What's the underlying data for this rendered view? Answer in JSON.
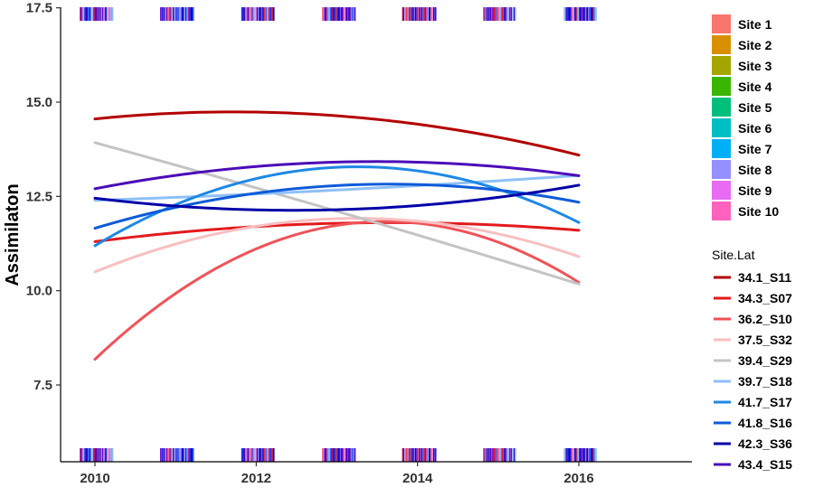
{
  "chart_data": {
    "type": "line",
    "title": "",
    "xlabel": "",
    "ylabel": "Assimilaton",
    "xlim": [
      2009.6,
      2017.4
    ],
    "ylim": [
      5.8,
      17.5
    ],
    "x_ticks": [
      2010,
      2012,
      2014,
      2016
    ],
    "y_ticks": [
      7.5,
      10.0,
      12.5,
      15.0,
      17.5
    ],
    "x_tick_labels": [
      "2010",
      "2012",
      "2014",
      "2016"
    ],
    "y_tick_labels": [
      "7.5",
      "10.0",
      "12.5",
      "15.0",
      "17.5"
    ],
    "grid": false,
    "legend_fill": {
      "title": "",
      "placement": "right",
      "entries": [
        {
          "label": "Site 1",
          "color": "#F8766D"
        },
        {
          "label": "Site 2",
          "color": "#D89000"
        },
        {
          "label": "Site 3",
          "color": "#A3A500"
        },
        {
          "label": "Site 4",
          "color": "#39B600"
        },
        {
          "label": "Site 5",
          "color": "#00BF7D"
        },
        {
          "label": "Site 6",
          "color": "#00BFC4"
        },
        {
          "label": "Site 7",
          "color": "#00B0F6"
        },
        {
          "label": "Site 8",
          "color": "#9590FF"
        },
        {
          "label": "Site 9",
          "color": "#E76BF3"
        },
        {
          "label": "Site 10",
          "color": "#FF62BC"
        }
      ]
    },
    "legend_lines": {
      "title": "Site.Lat",
      "placement": "right"
    },
    "series": [
      {
        "name": "34.1_S11",
        "color": "#B30000",
        "x": [
          2010,
          2012,
          2014,
          2016
        ],
        "y": [
          14.55,
          14.75,
          14.4,
          13.6
        ]
      },
      {
        "name": "34.3_S07",
        "color": "#E31A1C",
        "x": [
          2010,
          2012,
          2014,
          2016
        ],
        "y": [
          11.3,
          11.7,
          11.8,
          11.6
        ]
      },
      {
        "name": "36.2_S10",
        "color": "#EF5358",
        "x": [
          2010,
          2012,
          2014,
          2016
        ],
        "y": [
          8.2,
          11.05,
          11.85,
          10.2
        ]
      },
      {
        "name": "37.5_S32",
        "color": "#F9BFC0",
        "x": [
          2010,
          2012,
          2014,
          2016
        ],
        "y": [
          10.5,
          11.7,
          11.85,
          10.9
        ]
      },
      {
        "name": "39.4_S29",
        "color": "#C4C4C4",
        "x": [
          2010,
          2012,
          2014,
          2016
        ],
        "y": [
          13.9,
          12.8,
          11.4,
          10.2
        ]
      },
      {
        "name": "39.7_S18",
        "color": "#8EC0F5",
        "x": [
          2010,
          2012,
          2014,
          2016
        ],
        "y": [
          12.4,
          12.55,
          12.8,
          13.05
        ]
      },
      {
        "name": "41.7_S17",
        "color": "#1E88E5",
        "x": [
          2010,
          2012,
          2014,
          2016
        ],
        "y": [
          11.2,
          12.95,
          13.2,
          11.8
        ]
      },
      {
        "name": "41.8_S16",
        "color": "#0D5BD9",
        "x": [
          2010,
          2012,
          2014,
          2016
        ],
        "y": [
          11.65,
          12.6,
          12.8,
          12.35
        ]
      },
      {
        "name": "42.3_S36",
        "color": "#0000A8",
        "x": [
          2010,
          2012,
          2014,
          2016
        ],
        "y": [
          12.45,
          12.15,
          12.25,
          12.8
        ]
      },
      {
        "name": "43.4_S15",
        "color": "#4B0CB8",
        "x": [
          2010,
          2012,
          2014,
          2016
        ],
        "y": [
          12.7,
          13.3,
          13.4,
          13.05
        ]
      }
    ],
    "rug_colors": [
      "#0000CD",
      "#1E5BFF",
      "#6A00C8",
      "#F06090",
      "#8EC0F5",
      "#E31A1C",
      "#FF62BC",
      "#2020E0",
      "#9590FF",
      "#4B0CB8"
    ],
    "rug_clusters": [
      {
        "x": 2010.0,
        "width": 0.4
      },
      {
        "x": 2011.0,
        "width": 0.4
      },
      {
        "x": 2012.0,
        "width": 0.4
      },
      {
        "x": 2013.0,
        "width": 0.4
      },
      {
        "x": 2014.0,
        "width": 0.4
      },
      {
        "x": 2015.0,
        "width": 0.4
      },
      {
        "x": 2016.0,
        "width": 0.4
      }
    ]
  }
}
